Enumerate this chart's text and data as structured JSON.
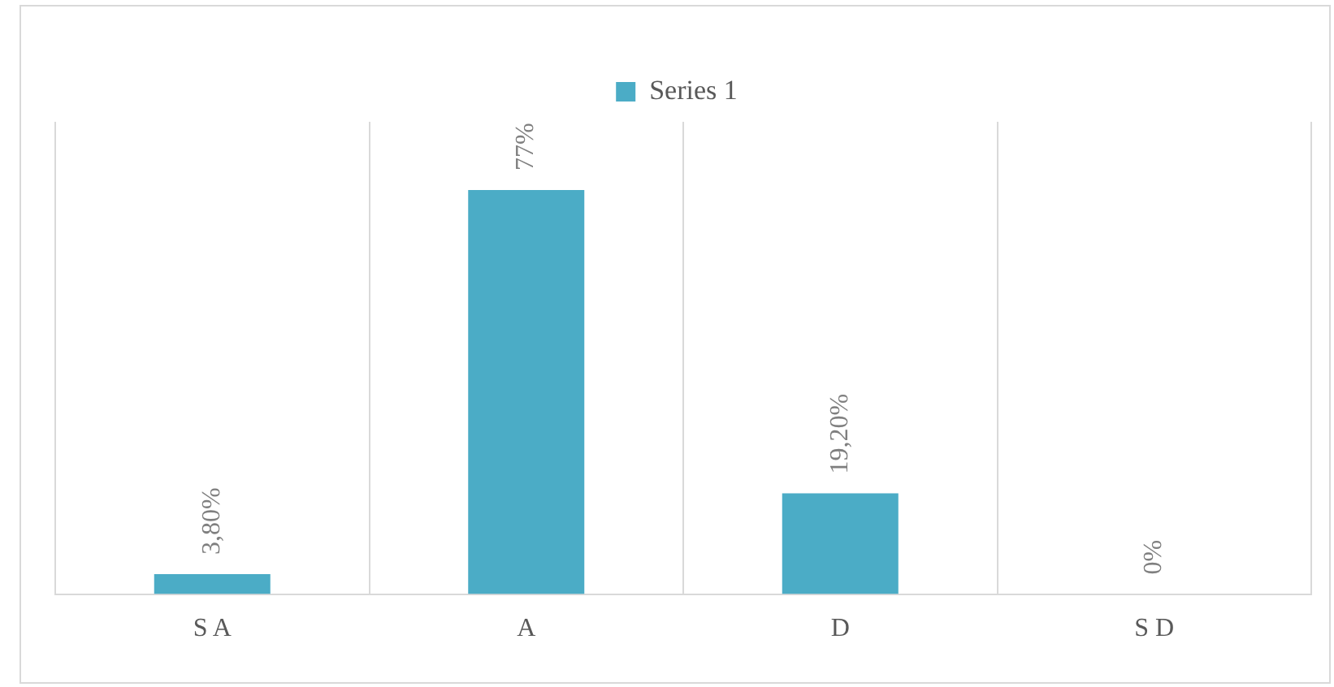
{
  "chart_data": {
    "type": "bar",
    "categories": [
      "S A",
      "A",
      "D",
      "S D"
    ],
    "series": [
      {
        "name": "Series 1",
        "color": "#4bacc6",
        "values": [
          3.8,
          77,
          19.2,
          0
        ],
        "value_labels": [
          "3,80%",
          "77%",
          "19,20%",
          "0%"
        ]
      }
    ],
    "ylim": [
      0,
      90
    ],
    "tick_labels": "x",
    "grid": "x",
    "legend": "top"
  }
}
